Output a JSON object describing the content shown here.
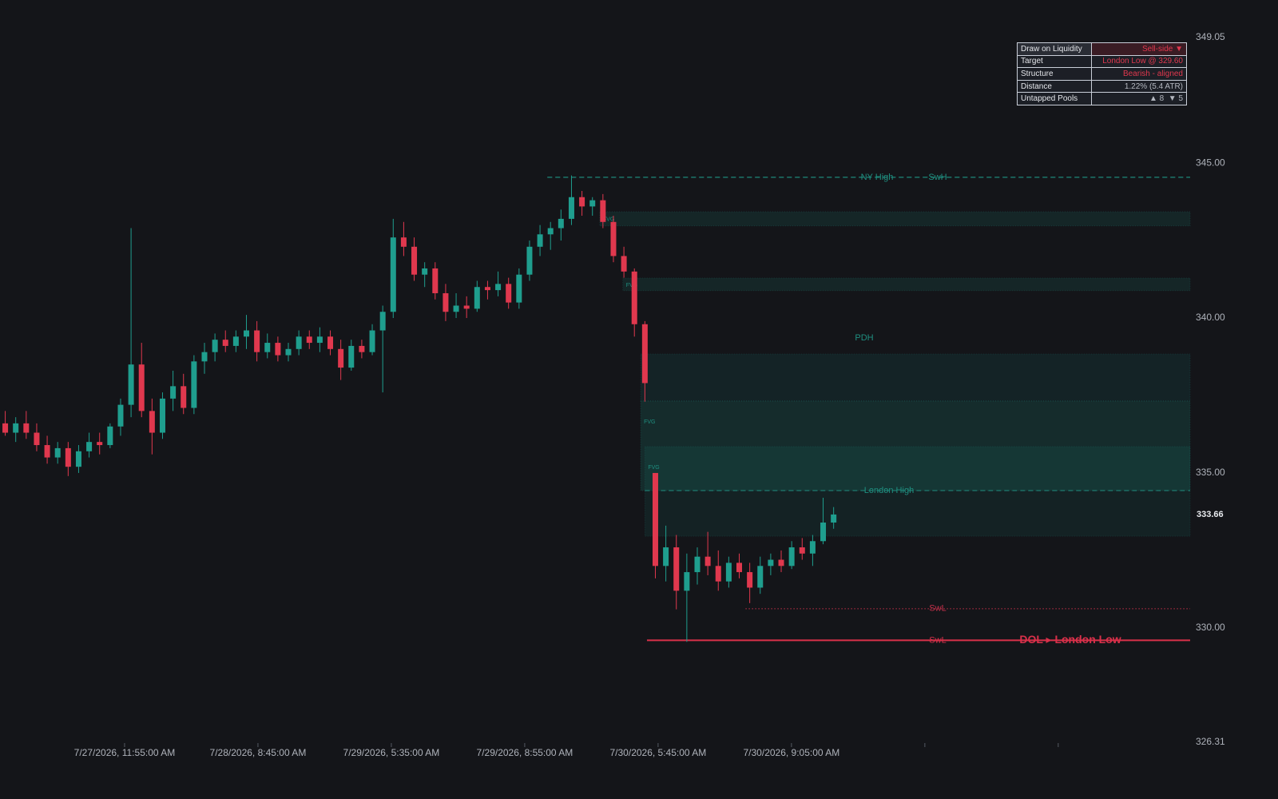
{
  "chart_data": {
    "type": "candlestick",
    "open": [
      336.6,
      336.3,
      336.6,
      336.3,
      335.9,
      335.5,
      335.8,
      335.2,
      335.7,
      336.0,
      335.9,
      336.5,
      337.2,
      338.5,
      337.0,
      336.3,
      337.4,
      337.8,
      337.1,
      338.6,
      338.9,
      339.3,
      339.1,
      339.4,
      339.6,
      338.9,
      339.2,
      338.8,
      339.0,
      339.4,
      339.2,
      339.4,
      339.0,
      338.4,
      339.1,
      338.9,
      339.6,
      340.2,
      342.6,
      342.3,
      341.4,
      341.6,
      340.8,
      340.2,
      340.4,
      340.3,
      341.0,
      340.9,
      341.1,
      340.5,
      341.4,
      342.3,
      342.7,
      342.9,
      343.2,
      343.9,
      343.6,
      343.8,
      343.1,
      342.0,
      341.5,
      339.8,
      335.0,
      332.0,
      332.6,
      331.2,
      331.8,
      332.3,
      332.0,
      331.5,
      332.1,
      331.8,
      331.3,
      332.0,
      332.2,
      332.0,
      332.6,
      332.4,
      332.8,
      333.4
    ],
    "high": [
      337.0,
      336.8,
      337.0,
      336.6,
      336.2,
      336.0,
      336.0,
      335.9,
      336.3,
      336.3,
      336.6,
      337.4,
      342.9,
      339.2,
      337.4,
      337.6,
      338.3,
      338.2,
      338.8,
      339.2,
      339.5,
      339.6,
      339.6,
      340.1,
      339.9,
      339.5,
      339.4,
      339.2,
      339.6,
      339.6,
      339.7,
      339.6,
      339.3,
      339.3,
      339.3,
      339.8,
      340.4,
      343.2,
      343.1,
      342.6,
      341.8,
      341.8,
      341.1,
      340.8,
      340.7,
      341.2,
      341.2,
      341.5,
      341.3,
      341.6,
      342.5,
      343.0,
      343.1,
      343.5,
      344.6,
      344.1,
      343.9,
      344.0,
      343.3,
      342.3,
      341.6,
      339.9,
      335.0,
      333.3,
      333.0,
      332.4,
      332.6,
      333.1,
      332.5,
      332.3,
      332.4,
      332.1,
      332.3,
      332.4,
      332.5,
      332.8,
      332.9,
      333.0,
      334.2,
      333.9
    ],
    "low": [
      336.2,
      336.0,
      336.1,
      335.7,
      335.3,
      335.3,
      334.9,
      335.0,
      335.5,
      335.6,
      335.8,
      336.2,
      336.8,
      336.8,
      335.6,
      336.1,
      337.0,
      336.9,
      336.9,
      338.2,
      338.6,
      338.9,
      338.9,
      339.0,
      338.6,
      338.7,
      338.6,
      338.6,
      338.8,
      339.0,
      338.9,
      338.8,
      338.0,
      338.3,
      338.7,
      338.8,
      337.6,
      340.0,
      342.0,
      341.2,
      341.0,
      340.6,
      339.9,
      340.0,
      340.0,
      340.2,
      340.6,
      340.7,
      340.3,
      340.3,
      341.2,
      342.0,
      342.2,
      342.5,
      343.0,
      343.3,
      343.3,
      342.9,
      341.8,
      341.3,
      339.4,
      337.3,
      331.6,
      331.5,
      330.6,
      329.55,
      331.4,
      331.7,
      331.2,
      331.3,
      331.6,
      330.8,
      331.1,
      331.7,
      331.8,
      331.9,
      332.2,
      332.0,
      332.7,
      333.2
    ],
    "close": [
      336.3,
      336.6,
      336.3,
      335.9,
      335.5,
      335.8,
      335.2,
      335.7,
      336.0,
      335.9,
      336.5,
      337.2,
      338.5,
      337.0,
      336.3,
      337.4,
      337.8,
      337.1,
      338.6,
      338.9,
      339.3,
      339.1,
      339.4,
      339.6,
      338.9,
      339.2,
      338.8,
      339.0,
      339.4,
      339.2,
      339.4,
      339.0,
      338.4,
      339.1,
      338.9,
      339.6,
      340.2,
      342.6,
      342.3,
      341.4,
      341.6,
      340.8,
      340.2,
      340.4,
      340.3,
      341.0,
      340.9,
      341.1,
      340.5,
      341.4,
      342.3,
      342.7,
      342.9,
      343.2,
      343.9,
      343.6,
      343.8,
      343.1,
      342.0,
      341.5,
      339.8,
      337.9,
      332.0,
      332.6,
      331.2,
      331.8,
      332.3,
      332.0,
      331.5,
      332.1,
      331.8,
      331.3,
      332.0,
      332.2,
      332.0,
      332.6,
      332.4,
      332.8,
      333.4,
      333.66
    ],
    "up_color": "#1f9e8e",
    "down_color": "#e0384e",
    "ylim": [
      326.31,
      349.05
    ],
    "yticks": [
      326.31,
      {
        "value": 330,
        "label": "330.00"
      },
      {
        "value": 335,
        "label": "335.00"
      },
      {
        "value": 340,
        "label": "340.00"
      },
      {
        "value": 345,
        "label": "345.00"
      },
      349.05
    ],
    "xlim": [
      0,
      113.5
    ],
    "xticks": [
      {
        "value": 11.88,
        "label": "7/27/2026, 11:55:00 AM"
      },
      {
        "value": 24.6,
        "label": "7/28/2026, 8:45:00 AM"
      },
      {
        "value": 37.32,
        "label": "7/29/2026, 5:35:00 AM"
      },
      {
        "value": 50.04,
        "label": "7/29/2026, 8:55:00 AM"
      },
      {
        "value": 62.76,
        "label": "7/30/2026, 5:45:00 AM"
      },
      {
        "value": 75.48,
        "label": "7/30/2026, 9:05:00 AM"
      },
      {
        "value": 88.2,
        "label": null
      },
      {
        "value": 100.92,
        "label": null
      }
    ],
    "last_price": 333.66,
    "zones": [
      {
        "label": "FVG",
        "top": 343.43,
        "bottom": 342.97,
        "from": 57.2
      },
      {
        "label": "FVG",
        "top": 341.29,
        "bottom": 340.88,
        "from": 59.4
      },
      {
        "label": "PDH",
        "top": 338.84,
        "bottom": 337.32,
        "from": 61.1
      },
      {
        "label": "FVG",
        "top": 337.32,
        "bottom": 334.43,
        "from": 61.1
      },
      {
        "label": "FVG",
        "top": 335.85,
        "bottom": 332.96,
        "from": 61.5
      }
    ],
    "levels": [
      {
        "label": "NY High",
        "value": 344.54,
        "from": 52.2,
        "color": "#1f8f80",
        "style": "dashed"
      },
      {
        "label": "SwH",
        "value": 344.54,
        "from": 52.2,
        "color": "#1f8f80",
        "style": "dashed"
      },
      {
        "label": "London High",
        "value": 334.43,
        "from": 61.5,
        "color": "#1f8f80",
        "style": "dashed"
      },
      {
        "label": "SwL",
        "value": 330.62,
        "from": 71.1,
        "color": "#c4304a",
        "style": "dotted"
      },
      {
        "label": "SwL",
        "value": 329.6,
        "from": 61.7,
        "color": "#d9304a",
        "style": "solid"
      }
    ],
    "annotation": "DOL ▸ London Low"
  },
  "panel": {
    "rows": [
      [
        "Draw on Liquidity",
        "Sell-side ▼"
      ],
      [
        "Target",
        "London Low @ 329.60"
      ],
      [
        "Structure",
        "Bearish - aligned"
      ],
      [
        "Distance",
        "1.22% (5.4 ATR)"
      ],
      [
        "Untapped Pools",
        "▲ 8  ▼ 5"
      ]
    ]
  }
}
